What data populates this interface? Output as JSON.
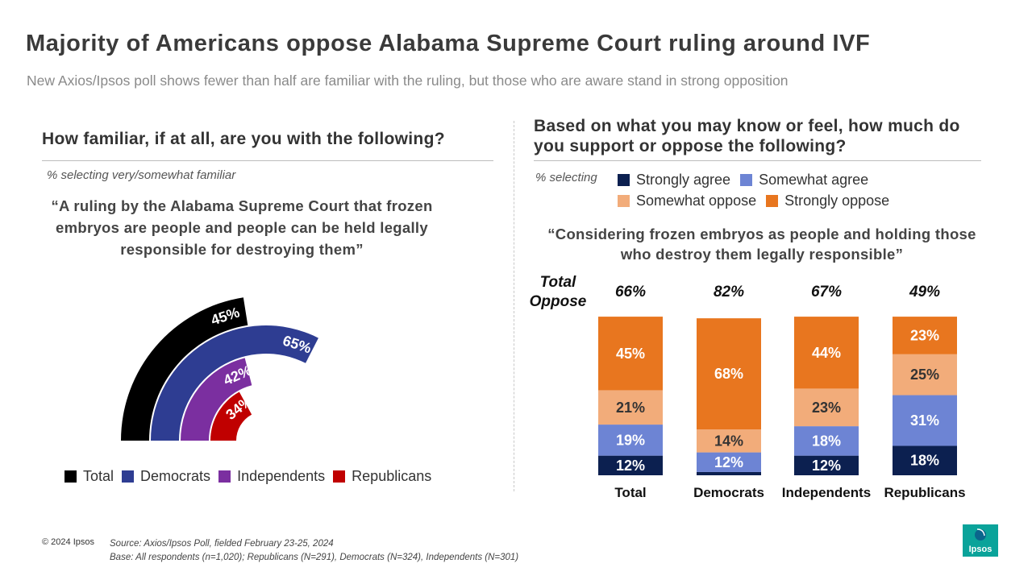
{
  "title": "Majority of Americans oppose Alabama Supreme Court ruling around IVF",
  "subtitle": "New Axios/Ipsos poll shows fewer than half are familiar with the ruling, but those who are aware stand in strong opposition",
  "left": {
    "question": "How familiar, if at all, are you with the following?",
    "note": "% selecting very/somewhat  familiar",
    "quote": "“A ruling by the Alabama Supreme Court that frozen embryos are people and people can be held legally responsible for destroying them”",
    "legend": [
      "Total",
      "Democrats",
      "Independents",
      "Republicans"
    ]
  },
  "right": {
    "question": "Based on what you may know or feel, how much do you support or oppose the following?",
    "note": "% selecting",
    "legend": [
      "Strongly agree",
      "Somewhat agree",
      "Somewhat oppose",
      "Strongly oppose"
    ],
    "quote": "“Considering frozen embryos as people and holding those who destroy them legally  responsible”",
    "total_oppose_label": "Total Oppose"
  },
  "colors": {
    "total": "#000000",
    "democrats": "#2e3d92",
    "independents": "#7b2fa0",
    "republicans": "#c00000",
    "strongly_agree": "#0c2050",
    "somewhat_agree": "#6d84d4",
    "somewhat_oppose": "#f2ac7a",
    "strongly_oppose": "#e8761f"
  },
  "chart_data": [
    {
      "type": "radial-bar",
      "categories": [
        "Total",
        "Democrats",
        "Independents",
        "Republicans"
      ],
      "values": [
        45,
        65,
        42,
        34
      ],
      "value_labels": [
        "45%",
        "65%",
        "42%",
        "34%"
      ],
      "unit": "%"
    },
    {
      "type": "bar",
      "stacked": true,
      "categories": [
        "Total",
        "Democrats",
        "Independents",
        "Republicans"
      ],
      "total_oppose": [
        "66%",
        "82%",
        "67%",
        "49%"
      ],
      "series": [
        {
          "name": "Strongly agree",
          "values": [
            12,
            2,
            12,
            18
          ],
          "labels": [
            "12%",
            "",
            "12%",
            "18%"
          ]
        },
        {
          "name": "Somewhat agree",
          "values": [
            19,
            12,
            18,
            31
          ],
          "labels": [
            "19%",
            "12%",
            "18%",
            "31%"
          ]
        },
        {
          "name": "Somewhat oppose",
          "values": [
            21,
            14,
            23,
            25
          ],
          "labels": [
            "21%",
            "14%",
            "23%",
            "25%"
          ]
        },
        {
          "name": "Strongly oppose",
          "values": [
            45,
            68,
            44,
            23
          ],
          "labels": [
            "45%",
            "68%",
            "44%",
            "23%"
          ]
        }
      ],
      "ylim": [
        0,
        100
      ]
    }
  ],
  "footer": {
    "copyright": "© 2024 Ipsos",
    "source": "Source: Axios/Ipsos Poll, fielded February 23-25, 2024",
    "base": "Base: All respondents (n=1,020); Republicans (N=291), Democrats (N=324), Independents (N=301)",
    "logo_text": "Ipsos"
  }
}
